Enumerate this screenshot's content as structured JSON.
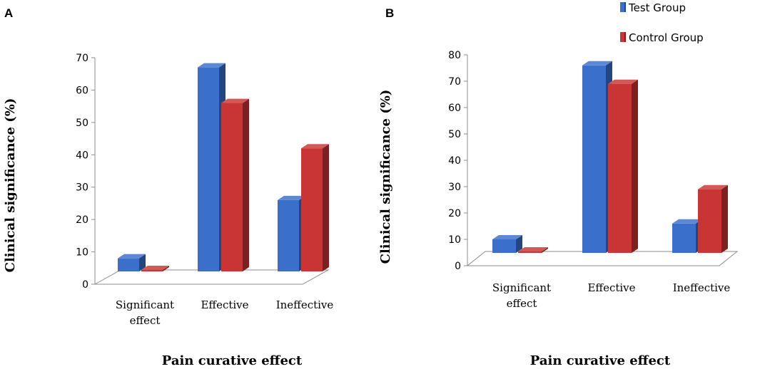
{
  "legend": [
    {
      "name": "Test Group",
      "color": "#3A6FCB"
    },
    {
      "name": "Control Group",
      "color": "#C93434"
    }
  ],
  "chart_data": [
    {
      "type": "bar",
      "panel": "A",
      "categories": [
        [
          "Significant",
          "effect"
        ],
        [
          "Effective"
        ],
        [
          "Ineffective"
        ]
      ],
      "series": [
        {
          "name": "Test Group",
          "values": [
            8,
            67,
            26
          ]
        },
        {
          "name": "Control Group",
          "values": [
            3,
            56,
            42
          ]
        }
      ],
      "ylim": [
        0,
        70
      ],
      "yticks": [
        0,
        10,
        20,
        30,
        40,
        50,
        60,
        70
      ],
      "xlabel": "Pain curative effect",
      "ylabel": "Clinical significance (%)"
    },
    {
      "type": "bar",
      "panel": "B",
      "categories": [
        [
          "Significant",
          "effect"
        ],
        [
          "Effective"
        ],
        [
          "Ineffective"
        ]
      ],
      "series": [
        {
          "name": "Test Group",
          "values": [
            10,
            76,
            16
          ]
        },
        {
          "name": "Control Group",
          "values": [
            4,
            69,
            29
          ]
        }
      ],
      "ylim": [
        0,
        80
      ],
      "yticks": [
        0,
        10,
        20,
        30,
        40,
        50,
        60,
        70,
        80
      ],
      "xlabel": "Pain curative effect",
      "ylabel": "Clinical significance (%)"
    }
  ]
}
